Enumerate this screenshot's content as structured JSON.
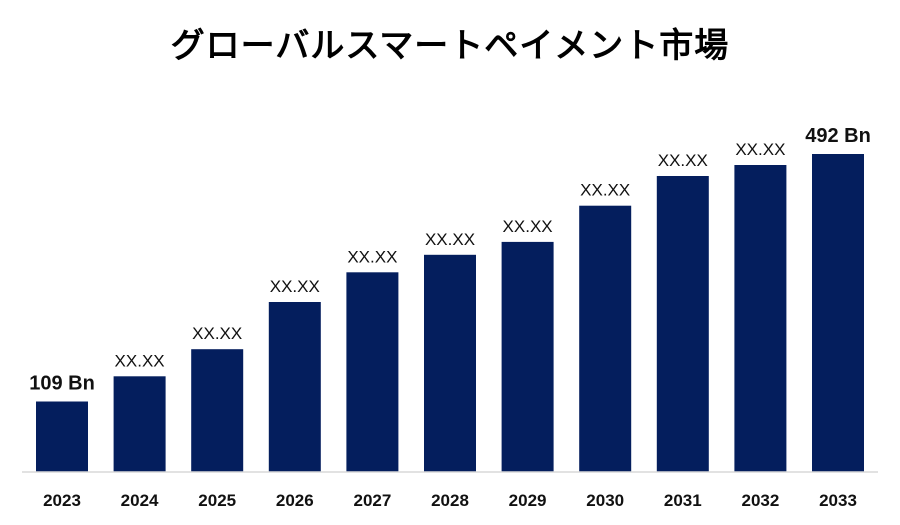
{
  "chart_data": {
    "type": "bar",
    "title": "グローバルスマートペイメント市場",
    "categories": [
      "2023",
      "2024",
      "2025",
      "2026",
      "2027",
      "2028",
      "2029",
      "2030",
      "2031",
      "2032",
      "2033"
    ],
    "values": [
      109,
      148,
      190,
      263,
      309,
      336,
      356,
      412,
      458,
      475,
      492
    ],
    "data_labels": [
      "109 Bn",
      "XX.XX",
      "XX.XX",
      "XX.XX",
      "XX.XX",
      "XX.XX",
      "XX.XX",
      "XX.XX",
      "XX.XX",
      "XX.XX",
      "492 Bn"
    ],
    "emphasized_labels": [
      0,
      10
    ],
    "bar_color": "#041E5D",
    "axis_color": "#D9D9D9",
    "grid": false,
    "legend": "none",
    "ylim": [
      0,
      560
    ]
  }
}
